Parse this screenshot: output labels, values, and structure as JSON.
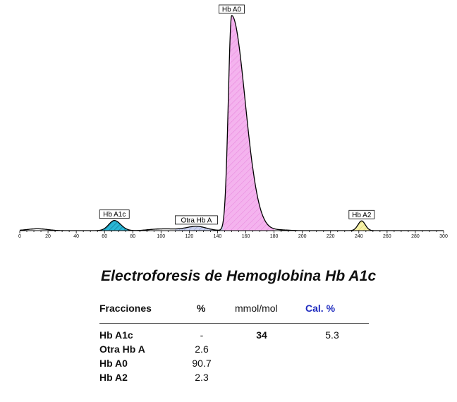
{
  "chart_data": {
    "type": "line",
    "title": "",
    "xlabel": "",
    "ylabel": "",
    "xlim": [
      0,
      300
    ],
    "ylim": [
      0,
      1.0
    ],
    "x_ticks": [
      0,
      20,
      40,
      60,
      80,
      100,
      120,
      140,
      160,
      180,
      200,
      220,
      240,
      260,
      280,
      300
    ],
    "grid": false,
    "peaks": [
      {
        "label": "Hb A1c",
        "from": 57,
        "to": 77,
        "center": 67,
        "height": 0.047,
        "color": "#29b6d6"
      },
      {
        "label": "Otra Hb A",
        "from": 110,
        "to": 144,
        "center": 125,
        "height": 0.02,
        "color": "#b9c2e8"
      },
      {
        "label": "Hb A0",
        "from": 144,
        "to": 180,
        "center": 150,
        "height": 1.0,
        "color": "#f1a8ea"
      },
      {
        "label": "Hb A2",
        "from": 234,
        "to": 250,
        "center": 242,
        "height": 0.045,
        "color": "#f3ee99"
      }
    ],
    "baseline_bumps": [
      {
        "center": 8,
        "height": 0.004
      },
      {
        "center": 15,
        "height": 0.006
      },
      {
        "center": 95,
        "height": 0.005
      },
      {
        "center": 105,
        "height": 0.006
      },
      {
        "center": 185,
        "height": 0.003
      }
    ]
  },
  "report": {
    "title": "Electroforesis de Hemoglobina Hb A1c",
    "headers": {
      "name": "Fracciones",
      "pct": "%",
      "mmol": "mmol/mol",
      "cal": "Cal. %"
    },
    "rows": [
      {
        "name": "Hb A1c",
        "pct": "-",
        "mmol": "34",
        "cal": "5.3"
      },
      {
        "name": "Otra Hb A",
        "pct": "2.6",
        "mmol": "",
        "cal": ""
      },
      {
        "name": "Hb A0",
        "pct": "90.7",
        "mmol": "",
        "cal": ""
      },
      {
        "name": "Hb A2",
        "pct": "2.3",
        "mmol": "",
        "cal": ""
      }
    ]
  }
}
